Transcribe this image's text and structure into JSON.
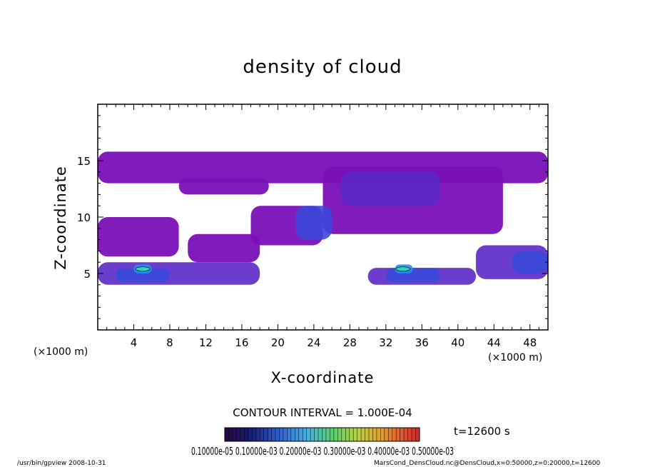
{
  "chart_data": {
    "type": "heatmap",
    "title": "density of cloud",
    "xlabel": "X-coordinate",
    "ylabel": "Z-coordinate",
    "x_unit_left": "(×1000 m)",
    "x_unit_right": "(×1000 m)",
    "xlim": [
      0,
      50
    ],
    "ylim": [
      0,
      20
    ],
    "x_ticks": [
      "4",
      "8",
      "12",
      "16",
      "20",
      "24",
      "28",
      "32",
      "36",
      "40",
      "44",
      "48"
    ],
    "y_ticks": [
      "5",
      "10",
      "15"
    ],
    "contour_interval_text": "CONTOUR INTERVAL = 1.000E-04",
    "time_text": "t=12600 s",
    "colorbar_labels_text": "0.10000e-05 0.10000e-03 0.20000e-03 0.30000e-03 0.40000e-03 0.50000e-03",
    "colors": {
      "background": "#ffffff",
      "base_cloud": "#7a10b8",
      "cloud_mid": "#5a28c8",
      "cloud_blue": "#3a48d8",
      "cloud_dark": "#1020a0",
      "cloud_core": "#2a8cf0",
      "peak": "#30d8b8"
    },
    "cloud_regions": [
      {
        "x": [
          0,
          50
        ],
        "z": [
          13.0,
          15.8
        ],
        "level": 1
      },
      {
        "x": [
          9,
          19
        ],
        "z": [
          12.0,
          13.5
        ],
        "level": 1
      },
      {
        "x": [
          25,
          45
        ],
        "z": [
          8.5,
          14.5
        ],
        "level": 1
      },
      {
        "x": [
          17,
          25
        ],
        "z": [
          7.5,
          11.0
        ],
        "level": 1
      },
      {
        "x": [
          0,
          9
        ],
        "z": [
          6.5,
          10.0
        ],
        "level": 1
      },
      {
        "x": [
          10,
          18
        ],
        "z": [
          6.0,
          8.5
        ],
        "level": 1
      },
      {
        "x": [
          0,
          18
        ],
        "z": [
          4.0,
          6.0
        ],
        "level": 2
      },
      {
        "x": [
          30,
          42
        ],
        "z": [
          4.0,
          5.5
        ],
        "level": 2
      },
      {
        "x": [
          42,
          50
        ],
        "z": [
          4.5,
          7.5
        ],
        "level": 2
      },
      {
        "x": [
          27,
          38
        ],
        "z": [
          11.0,
          14.0
        ],
        "level": 2
      },
      {
        "x": [
          22,
          26
        ],
        "z": [
          8.0,
          11.0
        ],
        "level": 3
      },
      {
        "x": [
          2,
          8
        ],
        "z": [
          4.2,
          5.5
        ],
        "level": 3
      },
      {
        "x": [
          32,
          38
        ],
        "z": [
          4.2,
          5.5
        ],
        "level": 3
      },
      {
        "x": [
          46,
          50
        ],
        "z": [
          5.0,
          7.0
        ],
        "level": 3
      },
      {
        "x": [
          4,
          6
        ],
        "z": [
          5.0,
          5.8
        ],
        "level": 4
      },
      {
        "x": [
          33,
          35
        ],
        "z": [
          5.0,
          5.8
        ],
        "level": 4
      }
    ]
  },
  "footer": {
    "program": "/usr/bin/gpview   2008-10-31",
    "source": "MarsCond_DensCloud.nc@DensCloud,x=0:50000,z=0:20000,t=12600"
  }
}
